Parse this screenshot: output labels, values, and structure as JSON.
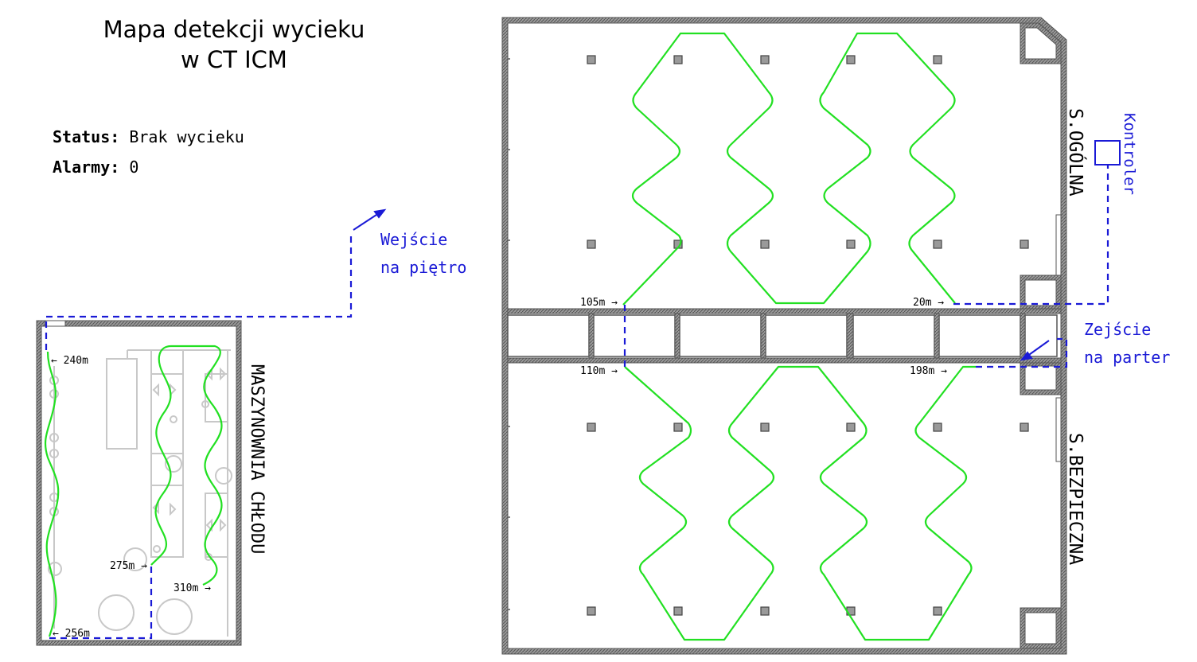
{
  "header": {
    "title_line1": "Mapa detekcji wycieku",
    "title_line2": "w CT ICM"
  },
  "status": {
    "status_label": "Status:",
    "status_value": "Brak wycieku",
    "alarms_label": "Alarmy:",
    "alarms_value": "0"
  },
  "rooms": {
    "ogolna": "S.OGÓLNA",
    "bezpieczna": "S.BEZPIECZNA",
    "maszynownia": "MASZYNOWNIA CHŁODU"
  },
  "controller_label": "Kontroler",
  "entrances": {
    "upstairs_line1": "Wejście",
    "upstairs_line2": "na piętro",
    "downstairs_line1": "Zejście",
    "downstairs_line2": "na parter"
  },
  "markers": {
    "m20": "20m →",
    "m105": "105m →",
    "m110": "110m →",
    "m198": "198m →",
    "m240": "← 240m",
    "m256": "← 256m",
    "m275": "275m →",
    "m310": "310m →"
  },
  "colors": {
    "sensor_cable": "#22e022",
    "cable_route": "#1a1ad6",
    "walls": "#555555",
    "equipment": "#c8c8c8"
  }
}
